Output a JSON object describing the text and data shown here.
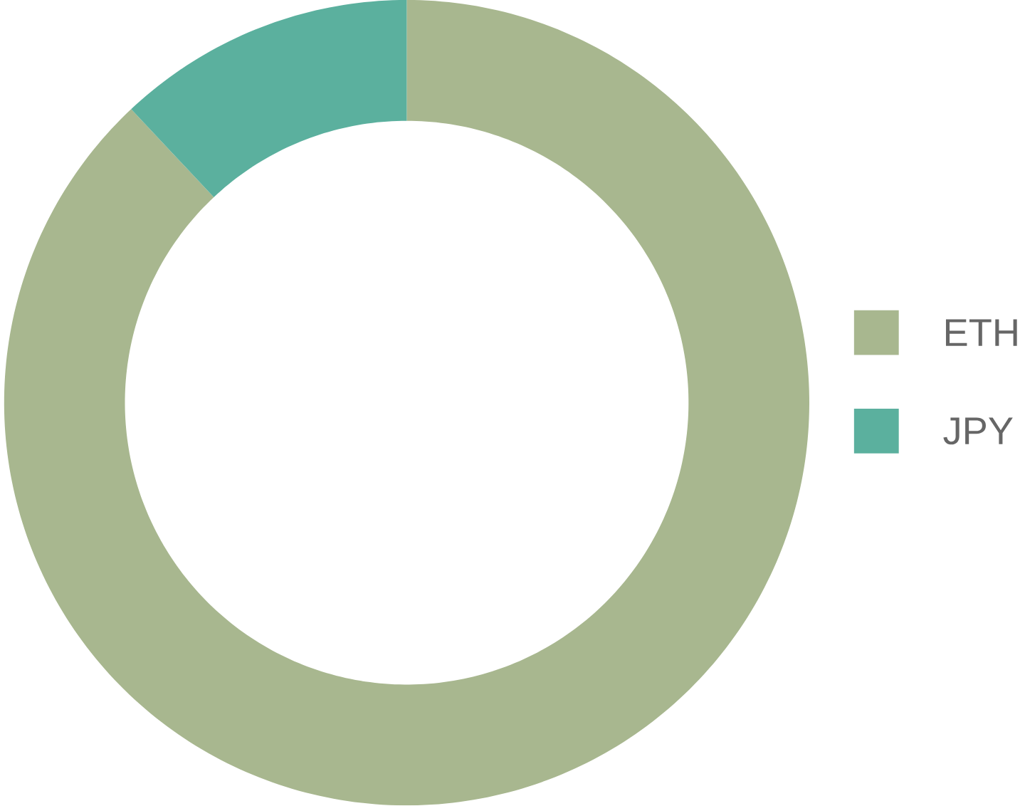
{
  "chart_data": {
    "type": "donut",
    "categories": [
      "ETH",
      "JPY"
    ],
    "values": [
      88,
      12
    ],
    "colors": [
      "#a8b78f",
      "#5bb09e"
    ],
    "legend": "right"
  }
}
